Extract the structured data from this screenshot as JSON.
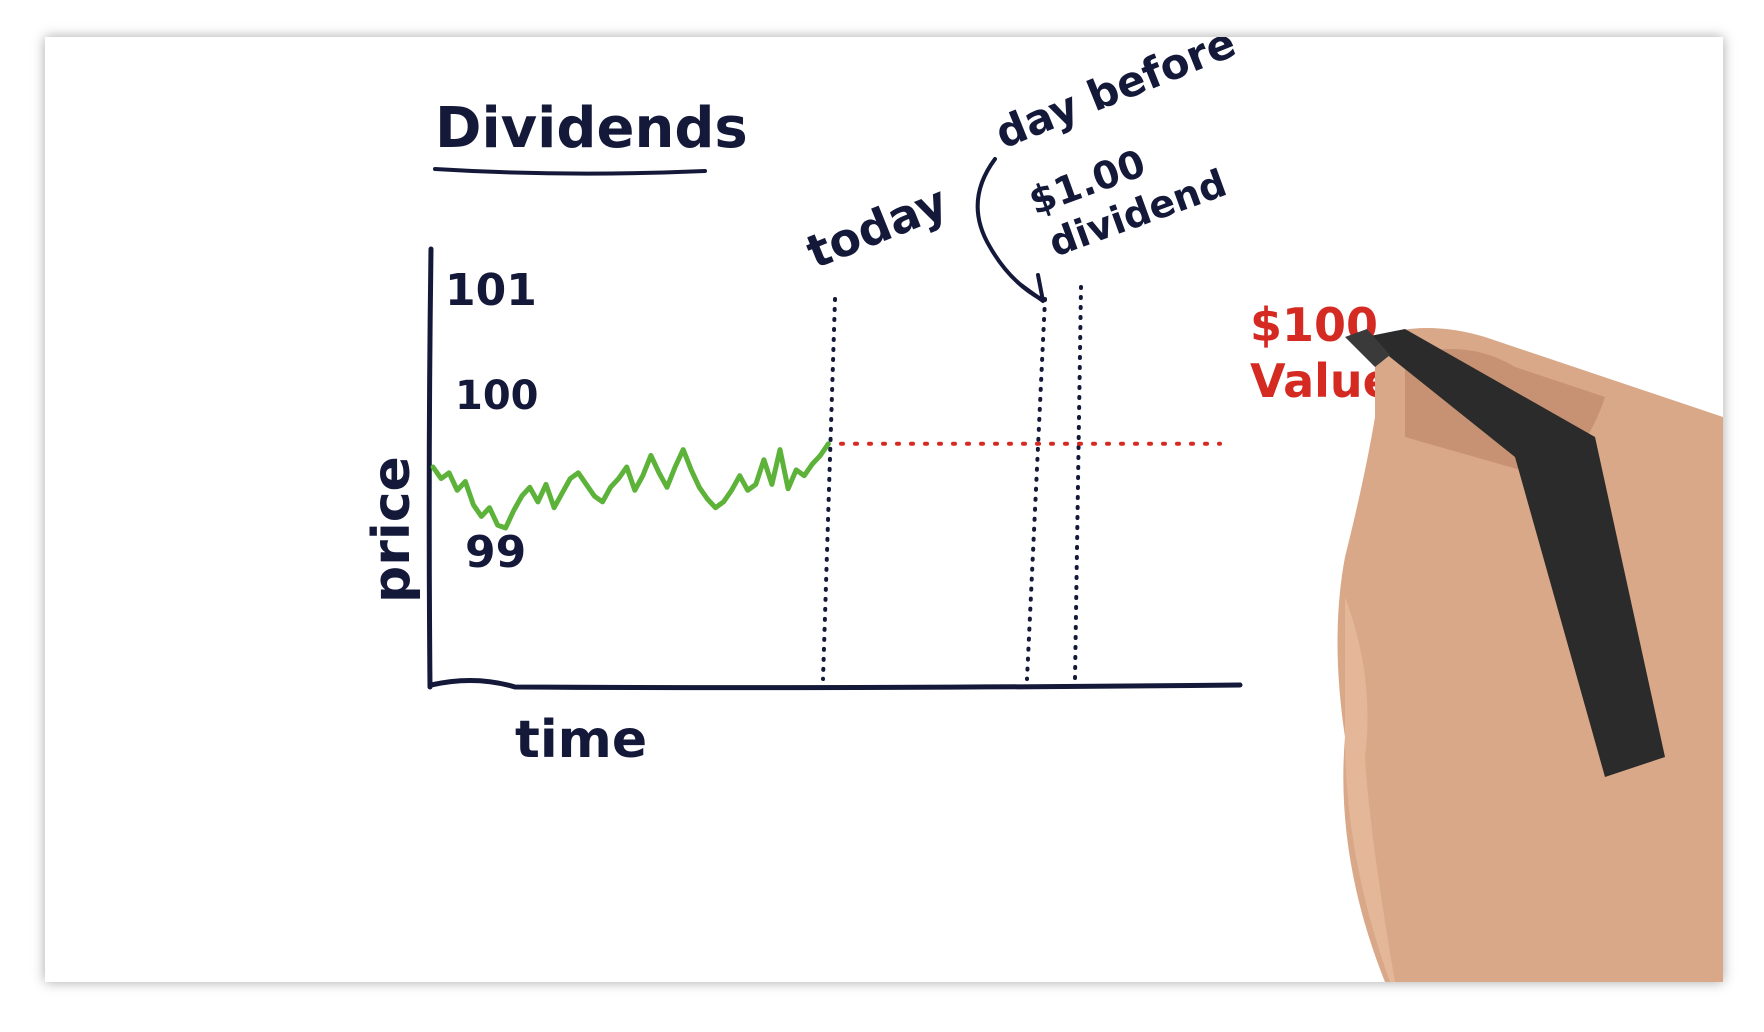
{
  "chart_data": {
    "type": "line",
    "title": "Dividends",
    "xlabel": "time",
    "ylabel": "price",
    "y_tick_labels": [
      "101",
      "100",
      "99"
    ],
    "y_ticks": [
      101,
      100,
      99
    ],
    "ylim": [
      98.4,
      101.4
    ],
    "xlim": [
      0,
      100
    ],
    "grid": false,
    "series": [
      {
        "color": "#5db33a",
        "x": [
          0,
          1,
          2,
          3,
          4,
          5,
          6,
          7,
          8,
          9,
          10,
          11,
          12,
          13,
          14,
          15,
          16,
          17,
          18,
          19,
          20,
          21,
          22,
          23,
          24,
          25,
          26,
          27,
          28,
          29,
          30,
          31,
          32,
          33,
          34,
          35,
          36,
          37,
          38,
          39,
          40,
          41,
          42,
          43,
          44,
          45,
          46,
          47,
          48,
          49
        ],
        "values": [
          99.9,
          99.82,
          99.86,
          99.74,
          99.8,
          99.64,
          99.56,
          99.62,
          99.5,
          99.48,
          99.6,
          99.7,
          99.76,
          99.66,
          99.78,
          99.62,
          99.72,
          99.82,
          99.86,
          99.78,
          99.7,
          99.66,
          99.76,
          99.82,
          99.9,
          99.74,
          99.84,
          99.98,
          99.86,
          99.76,
          99.9,
          100.02,
          99.88,
          99.76,
          99.68,
          99.62,
          99.66,
          99.74,
          99.84,
          99.74,
          99.78,
          99.95,
          99.78,
          100.02,
          99.75,
          99.88,
          99.84,
          99.92,
          99.98,
          100.06
        ]
      }
    ],
    "reference_line": {
      "color": "#d42a22",
      "value": 100.06
    },
    "annotations": {
      "today": "today",
      "day_before": "day before",
      "dividend_amount": "$1.00",
      "dividend_word": "dividend",
      "value_amount": "$100",
      "value_word": "Value"
    },
    "colors": {
      "ink": "#14193a",
      "series": "#5db33a",
      "accent": "#d42a22"
    }
  }
}
